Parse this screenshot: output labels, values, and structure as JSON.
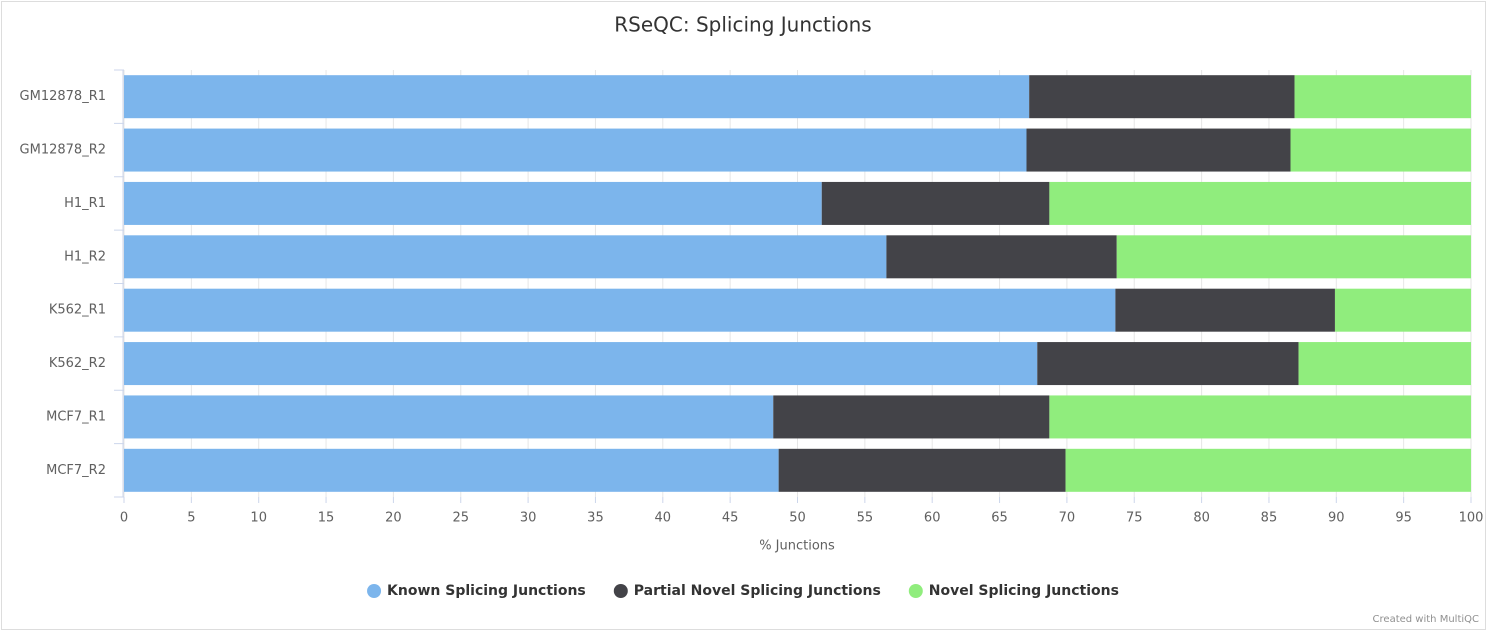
{
  "chart_data": {
    "type": "stacked-bar-horizontal",
    "title": "RSeQC: Splicing Junctions",
    "categories": [
      "GM12878_R1",
      "GM12878_R2",
      "H1_R1",
      "H1_R2",
      "K562_R1",
      "K562_R2",
      "MCF7_R1",
      "MCF7_R2"
    ],
    "series": [
      {
        "name": "Known Splicing Junctions",
        "color": "#7cb5ec",
        "values": [
          67.2,
          67.0,
          51.8,
          56.6,
          73.6,
          67.8,
          48.2,
          48.6
        ]
      },
      {
        "name": "Partial Novel Splicing Junctions",
        "color": "#434348",
        "values": [
          19.7,
          19.6,
          16.9,
          17.1,
          16.3,
          19.4,
          20.5,
          21.3
        ]
      },
      {
        "name": "Novel Splicing Junctions",
        "color": "#90ed7d",
        "values": [
          13.1,
          13.4,
          31.3,
          26.3,
          10.1,
          12.8,
          31.3,
          30.1
        ]
      }
    ],
    "xlabel": "% Junctions",
    "xlim": [
      0,
      100
    ],
    "xticks": [
      0,
      5,
      10,
      15,
      20,
      25,
      30,
      35,
      40,
      45,
      50,
      55,
      60,
      65,
      70,
      75,
      80,
      85,
      90,
      95,
      100
    ],
    "grid": true,
    "legend": "bottom",
    "credit": "Created with MultiQC"
  }
}
